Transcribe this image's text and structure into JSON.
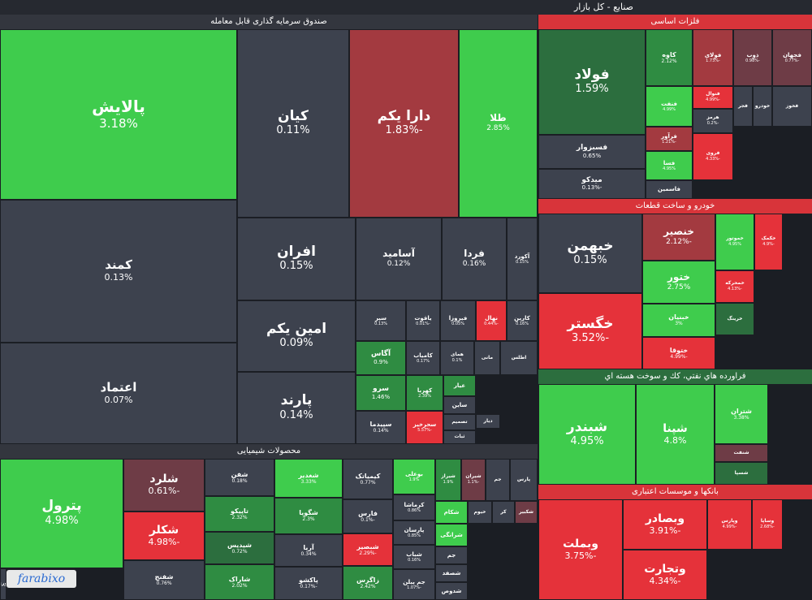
{
  "page_title": "صنایع - کل بازار",
  "logo_text": "farabixo",
  "colors": {
    "dark": "#3d424e",
    "green": "#3fcc4d",
    "green_mid": "#2f8c42",
    "green_dark": "#2c6e3e",
    "red": "#e5323a",
    "red_dark": "#a33a40",
    "red_mid": "#6e3c46",
    "header_green": "#2c6e3e",
    "header_red": "#d8343a",
    "header_dark": "#33363e"
  },
  "sectors": {
    "etf": "صندوق سرمایه گذاری قابل معامله",
    "metals": "فلزات اساسی",
    "auto": "خودرو و ساخت قطعات",
    "oil": "فراورده هاي نفتي، كك و سوخت هسته اي",
    "chemicals": "محصولات شیمیایی",
    "banks": "بانکها و موسسات اعتباری"
  },
  "tiles": [
    {
      "id": "palayesh",
      "name": "پالایش",
      "pct": "3.18%",
      "c": "green"
    },
    {
      "id": "kamand",
      "name": "کمند",
      "pct": "0.13%",
      "c": "dark"
    },
    {
      "id": "etemad",
      "name": "اعتماد",
      "pct": "0.07%",
      "c": "dark"
    },
    {
      "id": "kian",
      "name": "کیان",
      "pct": "0.11%",
      "c": "dark"
    },
    {
      "id": "darayekom",
      "name": "دارا یکم",
      "pct": "-1.83%",
      "c": "red_dark"
    },
    {
      "id": "tala",
      "name": "طلا",
      "pct": "2.85%",
      "c": "green"
    },
    {
      "id": "afran",
      "name": "افران",
      "pct": "0.15%",
      "c": "dark"
    },
    {
      "id": "aminyekom",
      "name": "امین یکم",
      "pct": "0.09%",
      "c": "dark"
    },
    {
      "id": "parand",
      "name": "پارند",
      "pct": "0.14%",
      "c": "dark"
    },
    {
      "id": "asamid",
      "name": "آسامید",
      "pct": "0.12%",
      "c": "dark"
    },
    {
      "id": "farda",
      "name": "فردا",
      "pct": "0.16%",
      "c": "dark"
    },
    {
      "id": "akord",
      "name": "آکورد",
      "pct": "0.15%",
      "c": "dark"
    },
    {
      "id": "sepehr",
      "name": "سپر",
      "pct": "0.13%",
      "c": "dark"
    },
    {
      "id": "yaqut",
      "name": "یاقوت",
      "pct": "-0.01%",
      "c": "dark"
    },
    {
      "id": "firoozeh",
      "name": "فیروزا",
      "pct": "0.05%",
      "c": "dark"
    },
    {
      "id": "nahal",
      "name": "نهال",
      "pct": "-0.44%",
      "c": "red"
    },
    {
      "id": "karin",
      "name": "کارین",
      "pct": "0.16%",
      "c": "dark"
    },
    {
      "id": "agas",
      "name": "آگاس",
      "pct": "0.9%",
      "c": "green_mid"
    },
    {
      "id": "kamyab",
      "name": "کامیاب",
      "pct": "0.17%",
      "c": "dark"
    },
    {
      "id": "hamay",
      "name": "همای",
      "pct": "0.1%",
      "c": "dark"
    },
    {
      "id": "mani",
      "name": "مانی",
      "pct": "",
      "c": "dark"
    },
    {
      "id": "atlas",
      "name": "اطلس",
      "pct": "",
      "c": "dark"
    },
    {
      "id": "sarv",
      "name": "سرو",
      "pct": "1.46%",
      "c": "green_mid"
    },
    {
      "id": "kahroba",
      "name": "کهربا",
      "pct": "2.39%",
      "c": "green_mid"
    },
    {
      "id": "ayar",
      "name": "عیار",
      "pct": "",
      "c": "green_mid"
    },
    {
      "id": "sayan",
      "name": "ساین",
      "pct": "",
      "c": "dark"
    },
    {
      "id": "sepidma",
      "name": "سپیدما",
      "pct": "0.14%",
      "c": "dark"
    },
    {
      "id": "saharkhiz",
      "name": "سحرخیز",
      "pct": "-5.57%",
      "c": "red"
    },
    {
      "id": "tasmim",
      "name": "تصمیم",
      "pct": "",
      "c": "dark"
    },
    {
      "id": "dayar",
      "name": "دیار",
      "pct": "",
      "c": "dark"
    },
    {
      "id": "sabat",
      "name": "ثبات",
      "pct": "",
      "c": "dark"
    },
    {
      "id": "petrol",
      "name": "پترول",
      "pct": "4.98%",
      "c": "green"
    },
    {
      "id": "nouri",
      "name": "نوری",
      "pct": "",
      "c": "dark"
    },
    {
      "id": "shlard",
      "name": "شلرد",
      "pct": "-0.61%",
      "c": "red_mid"
    },
    {
      "id": "shekalor",
      "name": "شکلر",
      "pct": "-4.98%",
      "c": "red"
    },
    {
      "id": "shafan",
      "name": "شفن",
      "pct": "",
      "c": "dark"
    },
    {
      "id": "shafan2",
      "name": "شفن",
      "pct": "0.18%",
      "c": "dark"
    },
    {
      "id": "shghadir",
      "name": "شغدیر",
      "pct": "3.33%",
      "c": "green"
    },
    {
      "id": "kimiatek",
      "name": "کیمیاتک",
      "pct": "0.77%",
      "c": "dark"
    },
    {
      "id": "booali",
      "name": "بوعلی",
      "pct": "1.9%",
      "c": "green"
    },
    {
      "id": "shiraz",
      "name": "شیراز",
      "pct": "1.9%",
      "c": "green_mid"
    },
    {
      "id": "shiran",
      "name": "شیران",
      "pct": "-1.1%",
      "c": "red_mid"
    },
    {
      "id": "jam",
      "name": "جم",
      "pct": "",
      "c": "dark"
    },
    {
      "id": "pars",
      "name": "پارس",
      "pct": "",
      "c": "dark"
    },
    {
      "id": "tapiko",
      "name": "تاپیکو",
      "pct": "2.32%",
      "c": "green_mid"
    },
    {
      "id": "shgooya",
      "name": "شگویا",
      "pct": "2.3%",
      "c": "green_mid"
    },
    {
      "id": "fars",
      "name": "فارس",
      "pct": "-0.1%",
      "c": "dark"
    },
    {
      "id": "kermasha",
      "name": "کرماشا",
      "pct": "0.86%",
      "c": "dark"
    },
    {
      "id": "shekam",
      "name": "شکام",
      "pct": "",
      "c": "green"
    },
    {
      "id": "kheivm",
      "name": "خیوم",
      "pct": "",
      "c": "dark"
    },
    {
      "id": "kar",
      "name": "کر",
      "pct": "",
      "c": "dark"
    },
    {
      "id": "shekabir",
      "name": "شکبیر",
      "pct": "",
      "c": "red_mid"
    },
    {
      "id": "shidis",
      "name": "شیدیس",
      "pct": "0.72%",
      "c": "green_dark"
    },
    {
      "id": "arya",
      "name": "آریا",
      "pct": "0.34%",
      "c": "dark"
    },
    {
      "id": "parsan",
      "name": "پارسان",
      "pct": "0.85%",
      "c": "dark"
    },
    {
      "id": "sharangi",
      "name": "شرانگی",
      "pct": "",
      "c": "green"
    },
    {
      "id": "shabsir",
      "name": "شبصیر",
      "pct": "-2.29%",
      "c": "red"
    },
    {
      "id": "jam2",
      "name": "جم",
      "pct": "",
      "c": "dark"
    },
    {
      "id": "shafan3",
      "name": "شفنج",
      "pct": "0.76%",
      "c": "dark"
    },
    {
      "id": "sharak",
      "name": "شاراک",
      "pct": "2.02%",
      "c": "green_mid"
    },
    {
      "id": "pakesho",
      "name": "پاکشو",
      "pct": "-0.17%",
      "c": "dark"
    },
    {
      "id": "zagros",
      "name": "زاگرس",
      "pct": "2.42%",
      "c": "green_mid"
    },
    {
      "id": "shebab",
      "name": "شباب",
      "pct": "0.16%",
      "c": "dark"
    },
    {
      "id": "shesfad",
      "name": "شصفد",
      "pct": "",
      "c": "dark"
    },
    {
      "id": "shedus",
      "name": "شدوص",
      "pct": "",
      "c": "dark"
    },
    {
      "id": "jampilan",
      "name": "جم پیلن",
      "pct": "-1.07%",
      "c": "dark"
    },
    {
      "id": "foulad",
      "name": "فولاد",
      "pct": "1.59%",
      "c": "green_dark"
    },
    {
      "id": "kaveh",
      "name": "کاوه",
      "pct": "2.12%",
      "c": "green_mid"
    },
    {
      "id": "foulai",
      "name": "فولای",
      "pct": "-1.73%",
      "c": "red_dark"
    },
    {
      "id": "zob",
      "name": "ذوب",
      "pct": "-0.98%",
      "c": "red_mid"
    },
    {
      "id": "fajahan",
      "name": "فجهان",
      "pct": "-0.77%",
      "c": "red_mid"
    },
    {
      "id": "fasezvar",
      "name": "فسبزوار",
      "pct": "0.65%",
      "c": "dark"
    },
    {
      "id": "faghanat",
      "name": "فنفت",
      "pct": "4.99%",
      "c": "green"
    },
    {
      "id": "feranavol",
      "name": "فنوال",
      "pct": "-4.99%",
      "c": "red"
    },
    {
      "id": "fajr",
      "name": "فجر",
      "pct": "",
      "c": "dark"
    },
    {
      "id": "fakhooz",
      "name": "فخوز",
      "pct": "",
      "c": "dark"
    },
    {
      "id": "mikako",
      "name": "میدکو",
      "pct": "-0.13%",
      "c": "dark"
    },
    {
      "id": "faravar",
      "name": "فرآور",
      "pct": "-1.21%",
      "c": "red_dark"
    },
    {
      "id": "hormoz",
      "name": "هرمز",
      "pct": "-0.2%",
      "c": "dark"
    },
    {
      "id": "fesa",
      "name": "فسا",
      "pct": "4.95%",
      "c": "green"
    },
    {
      "id": "farvi",
      "name": "فروی",
      "pct": "-4.33%",
      "c": "red"
    },
    {
      "id": "fasemin",
      "name": "فاسمین",
      "pct": "",
      "c": "dark"
    },
    {
      "id": "khodro",
      "name": "خودرو",
      "pct": "",
      "c": "dark"
    },
    {
      "id": "khbahman",
      "name": "خبهمن",
      "pct": "0.15%",
      "c": "dark"
    },
    {
      "id": "khensir",
      "name": "خنصیر",
      "pct": "-2.12%",
      "c": "red_dark"
    },
    {
      "id": "khomotor",
      "name": "خموتور",
      "pct": "4.95%",
      "c": "green"
    },
    {
      "id": "khakmak",
      "name": "خکمک",
      "pct": "-4.9%",
      "c": "red"
    },
    {
      "id": "khatoor",
      "name": "ختور",
      "pct": "2.75%",
      "c": "green"
    },
    {
      "id": "khemehreh",
      "name": "خمحرکه",
      "pct": "-4.13%",
      "c": "red"
    },
    {
      "id": "khegostar",
      "name": "خگستر",
      "pct": "-3.52%",
      "c": "red"
    },
    {
      "id": "khbanian",
      "name": "خبنیان",
      "pct": "3%",
      "c": "green"
    },
    {
      "id": "kheringk",
      "name": "خرینگ",
      "pct": "",
      "c": "green_dark"
    },
    {
      "id": "khatooqa",
      "name": "ختوقا",
      "pct": "-4.99%",
      "c": "red"
    },
    {
      "id": "shbandar",
      "name": "شبندر",
      "pct": "4.95%",
      "c": "green"
    },
    {
      "id": "shepena",
      "name": "شپنا",
      "pct": "4.8%",
      "c": "green"
    },
    {
      "id": "shetran",
      "name": "شتران",
      "pct": "3.38%",
      "c": "green"
    },
    {
      "id": "shefaft",
      "name": "شنفت",
      "pct": "",
      "c": "red_mid"
    },
    {
      "id": "shesepa",
      "name": "شسپا",
      "pct": "",
      "c": "green_dark"
    },
    {
      "id": "vebmelat",
      "name": "وبملت",
      "pct": "-3.75%",
      "c": "red"
    },
    {
      "id": "vebsader",
      "name": "وبصادر",
      "pct": "-3.91%",
      "c": "red"
    },
    {
      "id": "vetejarat",
      "name": "وتجارت",
      "pct": "-4.34%",
      "c": "red"
    },
    {
      "id": "vepars",
      "name": "وپارس",
      "pct": "-4.99%",
      "c": "red"
    },
    {
      "id": "vesapa",
      "name": "وساپا",
      "pct": "-2.68%",
      "c": "red"
    }
  ]
}
